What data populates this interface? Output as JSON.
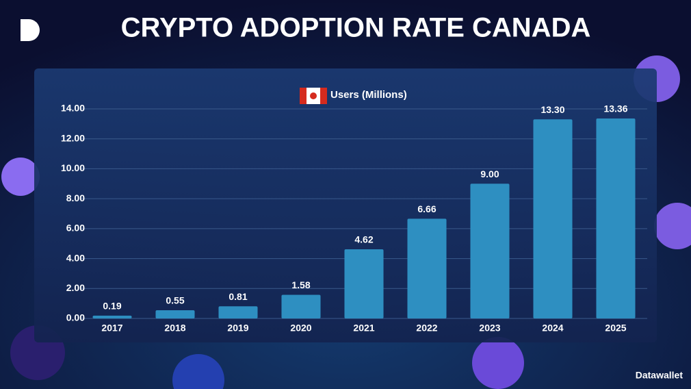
{
  "chart_data": {
    "type": "bar",
    "title": "CRYPTO ADOPTION RATE CANADA",
    "categories": [
      "2017",
      "2018",
      "2019",
      "2020",
      "2021",
      "2022",
      "2023",
      "2024",
      "2025"
    ],
    "series": [
      {
        "name": "Users (Millions)",
        "color": "#2e8fc1",
        "values": [
          0.19,
          0.55,
          0.81,
          1.58,
          4.62,
          6.66,
          9,
          13.3,
          13.36
        ],
        "value_labels": [
          "0.19",
          "0.55",
          "0.81",
          "1.58",
          "4.62",
          "6.66",
          "9.00",
          "13.30",
          "13.36"
        ]
      }
    ],
    "ylim": [
      0,
      14
    ],
    "yticks": [
      {
        "value": 0,
        "label": "0.00"
      },
      {
        "value": 2,
        "label": "2.00"
      },
      {
        "value": 4,
        "label": "4.00"
      },
      {
        "value": 6,
        "label": "6.00"
      },
      {
        "value": 8,
        "label": "8.00"
      },
      {
        "value": 10,
        "label": "10.00"
      },
      {
        "value": 12,
        "label": "12.00"
      },
      {
        "value": 14,
        "label": "14.00"
      }
    ],
    "grid": true,
    "brand": "Datawallet"
  }
}
